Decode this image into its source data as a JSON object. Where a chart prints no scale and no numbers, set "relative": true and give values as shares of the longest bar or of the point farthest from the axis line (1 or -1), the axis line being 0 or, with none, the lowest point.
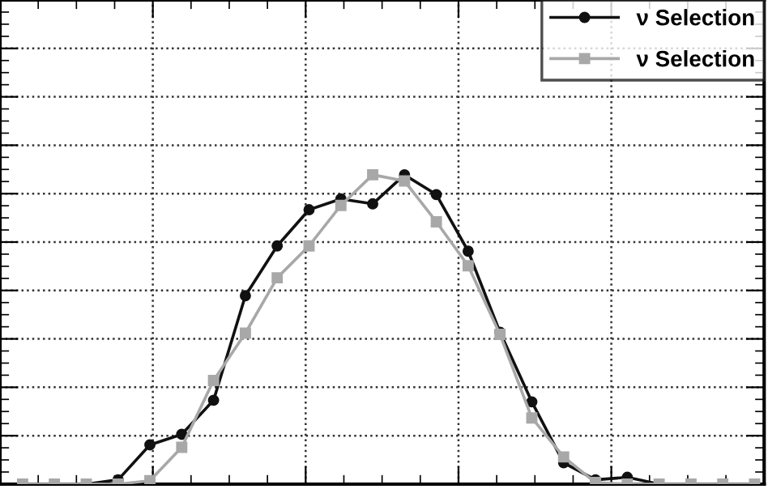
{
  "chart_data": {
    "type": "line",
    "relative": true,
    "categories": [
      null,
      null,
      null,
      null,
      null,
      null,
      null,
      null,
      null,
      null,
      null,
      null,
      null,
      null,
      null,
      null,
      null,
      null,
      null,
      null,
      null,
      null,
      null,
      null
    ],
    "series": [
      {
        "name": "ν Selection",
        "color": "#111111",
        "marker": "circle",
        "values": [
          0,
          0,
          0,
          0.014,
          0.127,
          0.161,
          0.271,
          0.609,
          0.77,
          0.887,
          0.922,
          0.906,
          1,
          0.936,
          0.753,
          0.491,
          0.266,
          0.069,
          0.014,
          0.022,
          0,
          0,
          0,
          0
        ]
      },
      {
        "name": "ν Selection",
        "color": "#a8a8a8",
        "marker": "square",
        "values": [
          0,
          0,
          0,
          0,
          0.011,
          0.119,
          0.335,
          0.488,
          0.667,
          0.77,
          0.901,
          1,
          0.98,
          0.848,
          0.706,
          0.484,
          0.214,
          0.088,
          0.005,
          0,
          0,
          0,
          0,
          0
        ]
      }
    ],
    "grid": true,
    "legend": "top right",
    "line_style": "solid"
  }
}
